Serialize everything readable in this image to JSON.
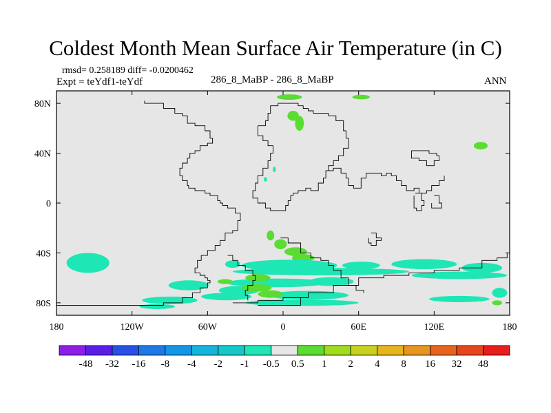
{
  "title": "Coldest Month Mean Surface Air Temperature (in C)",
  "stats_line": "rmsd= 0.258189 diff= -0.0200462",
  "experiment_line": "Expt = teYdf1-teYdf",
  "center_label": "286_8_MaBP - 286_8_MaBP",
  "season_label": "ANN",
  "chart_data": {
    "type": "heatmap",
    "projection": "cylindrical-equidistant",
    "title": "Coldest Month Mean Surface Air Temperature (in C)",
    "xlim": [
      -180,
      180
    ],
    "ylim": [
      -90,
      90
    ],
    "x_ticks": [
      {
        "value": -180,
        "label": "180"
      },
      {
        "value": -120,
        "label": "120W"
      },
      {
        "value": -60,
        "label": "60W"
      },
      {
        "value": 0,
        "label": "0"
      },
      {
        "value": 60,
        "label": "60E"
      },
      {
        "value": 120,
        "label": "120E"
      },
      {
        "value": 180,
        "label": "180"
      }
    ],
    "y_ticks": [
      {
        "value": 80,
        "label": "80N"
      },
      {
        "value": 40,
        "label": "40N"
      },
      {
        "value": 0,
        "label": "0"
      },
      {
        "value": -40,
        "label": "40S"
      },
      {
        "value": -80,
        "label": "80S"
      }
    ],
    "background_color": "#e6e6e6",
    "colorbar": {
      "labels": [
        "-48",
        "-32",
        "-16",
        "-8",
        "-4",
        "-2",
        "-1",
        "-0.5",
        "0.5",
        "1",
        "2",
        "4",
        "8",
        "16",
        "32",
        "48"
      ],
      "colors": [
        "#8c1ee6",
        "#5a1ee6",
        "#2850e6",
        "#1e78e6",
        "#1496e6",
        "#14b4dc",
        "#14c8c8",
        "#1ee6b4",
        "#e6e6e6",
        "#5adc32",
        "#a0dc1e",
        "#c8d21e",
        "#e6b41e",
        "#e6961e",
        "#e6641e",
        "#e6461e",
        "#e61e1e"
      ]
    },
    "anomaly_regions": [
      {
        "lon": 5,
        "lat": 85,
        "rlon": 10,
        "rlat": 2.2,
        "color": "#5adc32"
      },
      {
        "lon": 62,
        "lat": 85,
        "rlon": 7,
        "rlat": 1.8,
        "color": "#5adc32"
      },
      {
        "lon": 8,
        "lat": 70,
        "rlon": 4.5,
        "rlat": 4,
        "color": "#5adc32"
      },
      {
        "lon": 13,
        "lat": 64,
        "rlon": 3.5,
        "rlat": 6,
        "color": "#5adc32"
      },
      {
        "lon": 157,
        "lat": 46,
        "rlon": 5.5,
        "rlat": 3,
        "color": "#5adc32"
      },
      {
        "lon": -7,
        "lat": 27,
        "rlon": 1.2,
        "rlat": 2.2,
        "color": "#1ee6b4"
      },
      {
        "lon": -14,
        "lat": 19,
        "rlon": 1.2,
        "rlat": 1.8,
        "color": "#1ee6b4"
      },
      {
        "lon": -10,
        "lat": -26,
        "rlon": 3,
        "rlat": 4,
        "color": "#5adc32"
      },
      {
        "lon": -2,
        "lat": -33,
        "rlon": 5,
        "rlat": 4,
        "color": "#5adc32"
      },
      {
        "lon": 10,
        "lat": -39,
        "rlon": 9,
        "rlat": 3.5,
        "color": "#5adc32"
      },
      {
        "lon": 16,
        "lat": -44,
        "rlon": 9,
        "rlat": 3,
        "color": "#5adc32"
      },
      {
        "lon": -155,
        "lat": -48,
        "rlon": 17,
        "rlat": 8,
        "color": "#1ee6b4"
      },
      {
        "lon": -40,
        "lat": -49,
        "rlon": 6,
        "rlat": 3,
        "color": "#1ee6b4"
      },
      {
        "lon": 5,
        "lat": -50,
        "rlon": 38,
        "rlat": 4.5,
        "color": "#1ee6b4"
      },
      {
        "lon": 62,
        "lat": -50,
        "rlon": 15,
        "rlat": 3,
        "color": "#1ee6b4"
      },
      {
        "lon": 112,
        "lat": -49,
        "rlon": 26,
        "rlat": 4,
        "color": "#1ee6b4"
      },
      {
        "lon": 158,
        "lat": -52,
        "rlon": 16,
        "rlat": 4,
        "color": "#1ee6b4"
      },
      {
        "lon": 30,
        "lat": -55,
        "rlon": 70,
        "rlat": 3,
        "color": "#1ee6b4"
      },
      {
        "lon": 140,
        "lat": -58,
        "rlon": 38,
        "rlat": 3,
        "color": "#1ee6b4"
      },
      {
        "lon": -5,
        "lat": -64,
        "rlon": 40,
        "rlat": 3.5,
        "color": "#1ee6b4"
      },
      {
        "lon": 38,
        "lat": -63,
        "rlon": 18,
        "rlat": 3.5,
        "color": "#1ee6b4"
      },
      {
        "lon": -75,
        "lat": -66,
        "rlon": 16,
        "rlat": 4,
        "color": "#1ee6b4"
      },
      {
        "lon": -35,
        "lat": -70,
        "rlon": 16,
        "rlat": 3.5,
        "color": "#1ee6b4"
      },
      {
        "lon": 20,
        "lat": -74,
        "rlon": 32,
        "rlat": 3.5,
        "color": "#1ee6b4"
      },
      {
        "lon": -90,
        "lat": -78,
        "rlon": 22,
        "rlat": 3,
        "color": "#1ee6b4"
      },
      {
        "lon": -45,
        "lat": -75,
        "rlon": 20,
        "rlat": 3,
        "color": "#1ee6b4"
      },
      {
        "lon": 15,
        "lat": -80,
        "rlon": 45,
        "rlat": 2.5,
        "color": "#1ee6b4"
      },
      {
        "lon": -100,
        "lat": -83,
        "rlon": 14,
        "rlat": 2,
        "color": "#1ee6b4"
      },
      {
        "lon": 140,
        "lat": -77,
        "rlon": 24,
        "rlat": 2.5,
        "color": "#1ee6b4"
      },
      {
        "lon": 172,
        "lat": -72,
        "rlon": 6,
        "rlat": 4,
        "color": "#1ee6b4"
      },
      {
        "lon": -46,
        "lat": -63,
        "rlon": 6,
        "rlat": 2,
        "color": "#5adc32"
      },
      {
        "lon": -20,
        "lat": -60,
        "rlon": 10,
        "rlat": 3,
        "color": "#5adc32"
      },
      {
        "lon": -21,
        "lat": -68,
        "rlon": 12,
        "rlat": 3,
        "color": "#5adc32"
      },
      {
        "lon": -10,
        "lat": -73,
        "rlon": 10,
        "rlat": 3,
        "color": "#5adc32"
      },
      {
        "lon": 170,
        "lat": -80,
        "rlon": 4,
        "rlat": 2,
        "color": "#5adc32"
      }
    ],
    "coastlines": [
      [
        [
          -180,
          -82
        ],
        [
          -150,
          -82
        ],
        [
          -110,
          -82
        ],
        [
          -95,
          -80
        ],
        [
          -80,
          -76
        ],
        [
          -72,
          -72
        ],
        [
          -66,
          -68
        ],
        [
          -60,
          -64
        ],
        [
          -58,
          -62
        ],
        [
          -60,
          -60
        ],
        [
          -62,
          -58
        ],
        [
          -66,
          -56
        ],
        [
          -70,
          -52
        ],
        [
          -68,
          -46
        ],
        [
          -65,
          -42
        ],
        [
          -60,
          -38
        ],
        [
          -54,
          -34
        ],
        [
          -50,
          -30
        ],
        [
          -46,
          -24
        ],
        [
          -40,
          -22
        ],
        [
          -36,
          -14
        ],
        [
          -34,
          -8
        ],
        [
          -38,
          -4
        ],
        [
          -44,
          -2
        ],
        [
          -48,
          0
        ],
        [
          -50,
          2
        ],
        [
          -52,
          6
        ],
        [
          -58,
          8
        ],
        [
          -62,
          10
        ],
        [
          -70,
          12
        ],
        [
          -75,
          14
        ],
        [
          -76,
          18
        ],
        [
          -80,
          22
        ],
        [
          -82,
          28
        ],
        [
          -80,
          32
        ],
        [
          -76,
          36
        ],
        [
          -74,
          40
        ],
        [
          -70,
          42
        ],
        [
          -66,
          46
        ],
        [
          -60,
          48
        ],
        [
          -56,
          52
        ],
        [
          -58,
          58
        ],
        [
          -62,
          62
        ],
        [
          -70,
          64
        ],
        [
          -76,
          70
        ],
        [
          -80,
          72
        ],
        [
          -86,
          76
        ],
        [
          -95,
          80
        ],
        [
          -110,
          82
        ]
      ],
      [
        [
          -20,
          62
        ],
        [
          -14,
          66
        ],
        [
          -12,
          72
        ],
        [
          -10,
          78
        ],
        [
          -4,
          80
        ],
        [
          4,
          80
        ],
        [
          12,
          78
        ],
        [
          16,
          76
        ],
        [
          20,
          74
        ],
        [
          24,
          72
        ],
        [
          30,
          72
        ],
        [
          36,
          70
        ],
        [
          42,
          66
        ],
        [
          48,
          58
        ],
        [
          50,
          52
        ],
        [
          52,
          44
        ],
        [
          48,
          38
        ],
        [
          44,
          34
        ],
        [
          40,
          30
        ],
        [
          36,
          26
        ],
        [
          34,
          20
        ],
        [
          32,
          16
        ],
        [
          28,
          10
        ],
        [
          22,
          12
        ],
        [
          18,
          10
        ],
        [
          12,
          8
        ],
        [
          8,
          6
        ],
        [
          6,
          2
        ],
        [
          4,
          -2
        ],
        [
          2,
          -6
        ],
        [
          -4,
          -6
        ],
        [
          -10,
          -4
        ],
        [
          -14,
          0
        ],
        [
          -20,
          4
        ],
        [
          -24,
          10
        ],
        [
          -22,
          16
        ],
        [
          -20,
          22
        ],
        [
          -16,
          28
        ],
        [
          -12,
          34
        ],
        [
          -10,
          40
        ],
        [
          -8,
          46
        ],
        [
          -12,
          50
        ],
        [
          -16,
          54
        ],
        [
          -20,
          58
        ],
        [
          -20,
          62
        ]
      ],
      [
        [
          36,
          26
        ],
        [
          40,
          28
        ],
        [
          46,
          24
        ],
        [
          50,
          20
        ],
        [
          52,
          14
        ],
        [
          56,
          12
        ],
        [
          62,
          20
        ],
        [
          66,
          24
        ],
        [
          72,
          24
        ],
        [
          78,
          22
        ],
        [
          82,
          24
        ],
        [
          86,
          22
        ],
        [
          90,
          18
        ],
        [
          94,
          14
        ],
        [
          98,
          10
        ],
        [
          104,
          12
        ],
        [
          108,
          8
        ],
        [
          114,
          10
        ],
        [
          118,
          14
        ],
        [
          124,
          18
        ],
        [
          128,
          22
        ]
      ],
      [
        [
          -2,
          -28
        ],
        [
          4,
          -32
        ],
        [
          14,
          -40
        ],
        [
          22,
          -44
        ],
        [
          30,
          -46
        ],
        [
          36,
          -50
        ],
        [
          40,
          -54
        ],
        [
          46,
          -60
        ],
        [
          52,
          -66
        ],
        [
          58,
          -70
        ],
        [
          64,
          -72
        ]
      ],
      [
        [
          -44,
          -42
        ],
        [
          -40,
          -46
        ],
        [
          -36,
          -50
        ],
        [
          -30,
          -54
        ],
        [
          -24,
          -58
        ],
        [
          -22,
          -62
        ],
        [
          -24,
          -66
        ],
        [
          -28,
          -70
        ],
        [
          -30,
          -74
        ],
        [
          -28,
          -78
        ]
      ],
      [
        [
          -40,
          -80
        ],
        [
          -20,
          -78
        ],
        [
          0,
          -76
        ],
        [
          20,
          -72
        ],
        [
          40,
          -66
        ],
        [
          60,
          -60
        ],
        [
          80,
          -58
        ],
        [
          100,
          -56
        ],
        [
          120,
          -54
        ],
        [
          140,
          -52
        ],
        [
          158,
          -46
        ],
        [
          170,
          -44
        ],
        [
          178,
          -40
        ]
      ],
      [
        [
          -20,
          -82
        ],
        [
          0,
          -82
        ],
        [
          10,
          -82
        ],
        [
          14,
          -80
        ],
        [
          14,
          -76
        ]
      ],
      [
        [
          102,
          42
        ],
        [
          110,
          42
        ],
        [
          116,
          40
        ],
        [
          122,
          38
        ],
        [
          124,
          34
        ],
        [
          120,
          30
        ],
        [
          114,
          34
        ],
        [
          108,
          36
        ],
        [
          102,
          38
        ],
        [
          102,
          42
        ]
      ],
      [
        [
          105,
          8
        ],
        [
          110,
          2
        ],
        [
          112,
          -2
        ],
        [
          110,
          -6
        ],
        [
          106,
          -4
        ],
        [
          104,
          0
        ],
        [
          104,
          6
        ]
      ],
      [
        [
          120,
          6
        ],
        [
          124,
          0
        ],
        [
          126,
          -4
        ],
        [
          122,
          -4
        ],
        [
          118,
          0
        ]
      ],
      [
        [
          70,
          -24
        ],
        [
          74,
          -28
        ],
        [
          78,
          -30
        ],
        [
          74,
          -34
        ],
        [
          70,
          -32
        ],
        [
          68,
          -28
        ]
      ]
    ]
  }
}
